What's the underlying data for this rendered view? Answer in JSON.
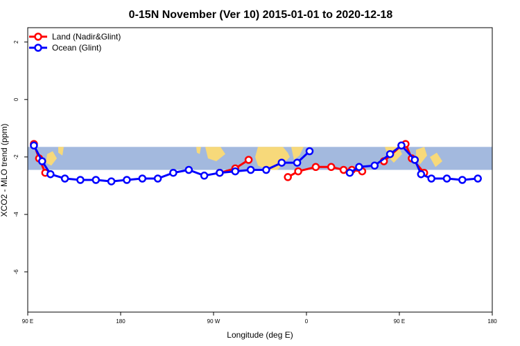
{
  "chart_data": {
    "type": "line",
    "title": "0-15N November (Ver 10)   2015-01-01 to 2020-12-18",
    "xlabel": "Longitude (deg E)",
    "ylabel": "XCO2 - MLO trend (ppm)",
    "xlim": [
      90,
      540
    ],
    "ylim": [
      -7.4,
      2.5
    ],
    "x_ticks": [
      {
        "value": 90,
        "label": "90 E"
      },
      {
        "value": 180,
        "label": "180"
      },
      {
        "value": 270,
        "label": "90 W"
      },
      {
        "value": 360,
        "label": "0"
      },
      {
        "value": 450,
        "label": "90 E"
      },
      {
        "value": 540,
        "label": "180"
      }
    ],
    "y_ticks": [
      {
        "value": 2,
        "label": "2"
      },
      {
        "value": 0,
        "label": "0"
      },
      {
        "value": -2,
        "label": "-2"
      },
      {
        "value": -4,
        "label": "-4"
      },
      {
        "value": -6,
        "label": "-6"
      }
    ],
    "latitude_band_y": [
      -1.65,
      -2.45
    ],
    "grid": false,
    "legend_position": "top-left",
    "series": [
      {
        "name": "Land (Nadir&Glint)",
        "color": "#ff0000",
        "segments": [
          [
            [
              96,
              -1.55
            ],
            [
              101,
              -2.05
            ],
            [
              107,
              -2.55
            ]
          ],
          [
            [
              276,
              -2.55
            ],
            [
              291,
              -2.4
            ],
            [
              304,
              -2.1
            ]
          ],
          [
            [
              342,
              -2.7
            ],
            [
              352,
              -2.5
            ],
            [
              369,
              -2.35
            ],
            [
              384,
              -2.35
            ],
            [
              396,
              -2.45
            ],
            [
              404,
              -2.45
            ],
            [
              414,
              -2.5
            ]
          ],
          [
            [
              435,
              -2.15
            ],
            [
              452,
              -1.6
            ],
            [
              456,
              -1.55
            ],
            [
              462,
              -2.05
            ],
            [
              474,
              -2.55
            ]
          ]
        ]
      },
      {
        "name": "Ocean (Glint)",
        "color": "#0000ff",
        "segments": [
          [
            [
              96,
              -1.6
            ],
            [
              104,
              -2.15
            ],
            [
              112,
              -2.6
            ],
            [
              126,
              -2.75
            ],
            [
              141,
              -2.8
            ],
            [
              156,
              -2.8
            ],
            [
              171,
              -2.85
            ],
            [
              186,
              -2.8
            ],
            [
              201,
              -2.75
            ],
            [
              216,
              -2.75
            ],
            [
              231,
              -2.55
            ],
            [
              246,
              -2.45
            ],
            [
              261,
              -2.65
            ],
            [
              276,
              -2.55
            ],
            [
              291,
              -2.5
            ],
            [
              306,
              -2.45
            ],
            [
              321,
              -2.45
            ],
            [
              336,
              -2.2
            ],
            [
              351,
              -2.2
            ],
            [
              363,
              -1.8
            ]
          ],
          [
            [
              402,
              -2.55
            ],
            [
              411,
              -2.35
            ],
            [
              426,
              -2.3
            ],
            [
              441,
              -1.9
            ],
            [
              452,
              -1.6
            ],
            [
              465,
              -2.1
            ],
            [
              471,
              -2.6
            ],
            [
              481,
              -2.75
            ],
            [
              496,
              -2.75
            ],
            [
              511,
              -2.8
            ],
            [
              526,
              -2.75
            ]
          ]
        ]
      }
    ]
  }
}
